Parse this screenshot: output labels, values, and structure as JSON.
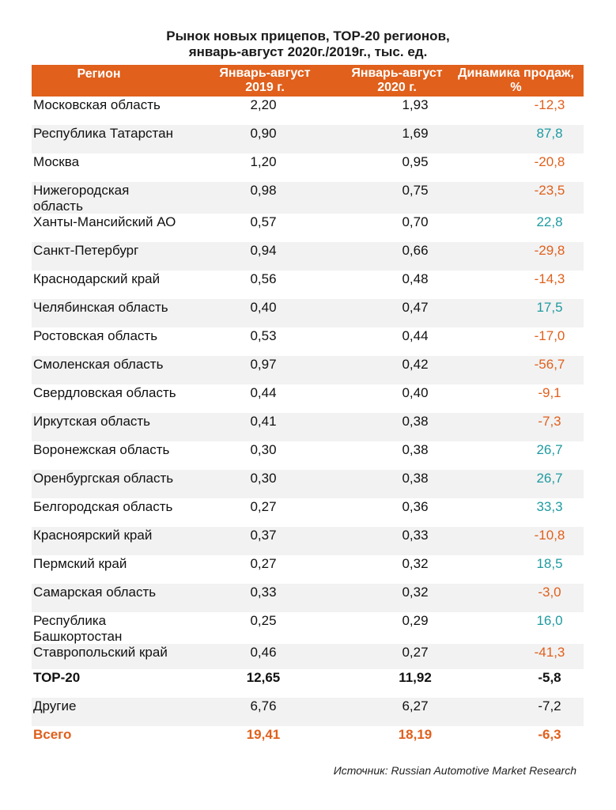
{
  "title": {
    "line1": "Рынок новых прицепов, ТОР-20 регионов,",
    "line2": "январь-август 2020г./2019г., тыс. ед."
  },
  "columns": {
    "region": "Регион",
    "y2019_line1": "Январь-август",
    "y2019_line2": "2019 г.",
    "y2020_line1": "Январь-август",
    "y2020_line2": "2020 г.",
    "dynamics_line1": "Динамика продаж,",
    "dynamics_line2": "%"
  },
  "rows": [
    {
      "region_line1": "Московская область",
      "region_line2": "",
      "v2019": "2,20",
      "v2020": "1,93",
      "dynamics": "-12,3"
    },
    {
      "region_line1": "Республика Татарстан",
      "region_line2": "",
      "v2019": "0,90",
      "v2020": "1,69",
      "dynamics": "87,8"
    },
    {
      "region_line1": "Москва",
      "region_line2": "",
      "v2019": "1,20",
      "v2020": "0,95",
      "dynamics": "-20,8"
    },
    {
      "region_line1": "Нижегородская",
      "region_line2": "область",
      "v2019": "0,98",
      "v2020": "0,75",
      "dynamics": "-23,5"
    },
    {
      "region_line1": "Ханты-Мансийский АО",
      "region_line2": "",
      "v2019": "0,57",
      "v2020": "0,70",
      "dynamics": "22,8"
    },
    {
      "region_line1": "Санкт-Петербург",
      "region_line2": "",
      "v2019": "0,94",
      "v2020": "0,66",
      "dynamics": "-29,8"
    },
    {
      "region_line1": "Краснодарский край",
      "region_line2": "",
      "v2019": "0,56",
      "v2020": "0,48",
      "dynamics": "-14,3"
    },
    {
      "region_line1": "Челябинская область",
      "region_line2": "",
      "v2019": "0,40",
      "v2020": "0,47",
      "dynamics": "17,5"
    },
    {
      "region_line1": "Ростовская область",
      "region_line2": "",
      "v2019": "0,53",
      "v2020": "0,44",
      "dynamics": "-17,0"
    },
    {
      "region_line1": "Смоленская область",
      "region_line2": "",
      "v2019": "0,97",
      "v2020": "0,42",
      "dynamics": "-56,7"
    },
    {
      "region_line1": "Свердловская область",
      "region_line2": "",
      "v2019": "0,44",
      "v2020": "0,40",
      "dynamics": "-9,1"
    },
    {
      "region_line1": "Иркутская область",
      "region_line2": "",
      "v2019": "0,41",
      "v2020": "0,38",
      "dynamics": "-7,3"
    },
    {
      "region_line1": "Воронежская область",
      "region_line2": "",
      "v2019": "0,30",
      "v2020": "0,38",
      "dynamics": "26,7"
    },
    {
      "region_line1": "Оренбургская область",
      "region_line2": "",
      "v2019": "0,30",
      "v2020": "0,38",
      "dynamics": "26,7"
    },
    {
      "region_line1": "Белгородская область",
      "region_line2": "",
      "v2019": "0,27",
      "v2020": "0,36",
      "dynamics": "33,3"
    },
    {
      "region_line1": "Красноярский край",
      "region_line2": "",
      "v2019": "0,37",
      "v2020": "0,33",
      "dynamics": "-10,8"
    },
    {
      "region_line1": "Пермский край",
      "region_line2": "",
      "v2019": "0,27",
      "v2020": "0,32",
      "dynamics": "18,5"
    },
    {
      "region_line1": "Самарская область",
      "region_line2": "",
      "v2019": "0,33",
      "v2020": "0,32",
      "dynamics": "-3,0"
    },
    {
      "region_line1": "Республика",
      "region_line2": "Башкортостан",
      "v2019": "0,25",
      "v2020": "0,29",
      "dynamics": "16,0"
    },
    {
      "region_line1": "Ставропольский край",
      "region_line2": "",
      "v2019": "0,46",
      "v2020": "0,27",
      "dynamics": "-41,3"
    }
  ],
  "top20": {
    "region": "TOP-20",
    "v2019": "12,65",
    "v2020": "11,92",
    "dynamics": "-5,8"
  },
  "others": {
    "region": "Другие",
    "v2019": "6,76",
    "v2020": "6,27",
    "dynamics": "-7,2"
  },
  "total": {
    "region": "Всего",
    "v2019": "19,41",
    "v2020": "18,19",
    "dynamics": "-6,3"
  },
  "source": "Источник: Russian Automotive Market Research",
  "colors": {
    "accent": "#e0601c",
    "positive": "#1e9aa0",
    "row_shade": "#f2f2f2"
  }
}
